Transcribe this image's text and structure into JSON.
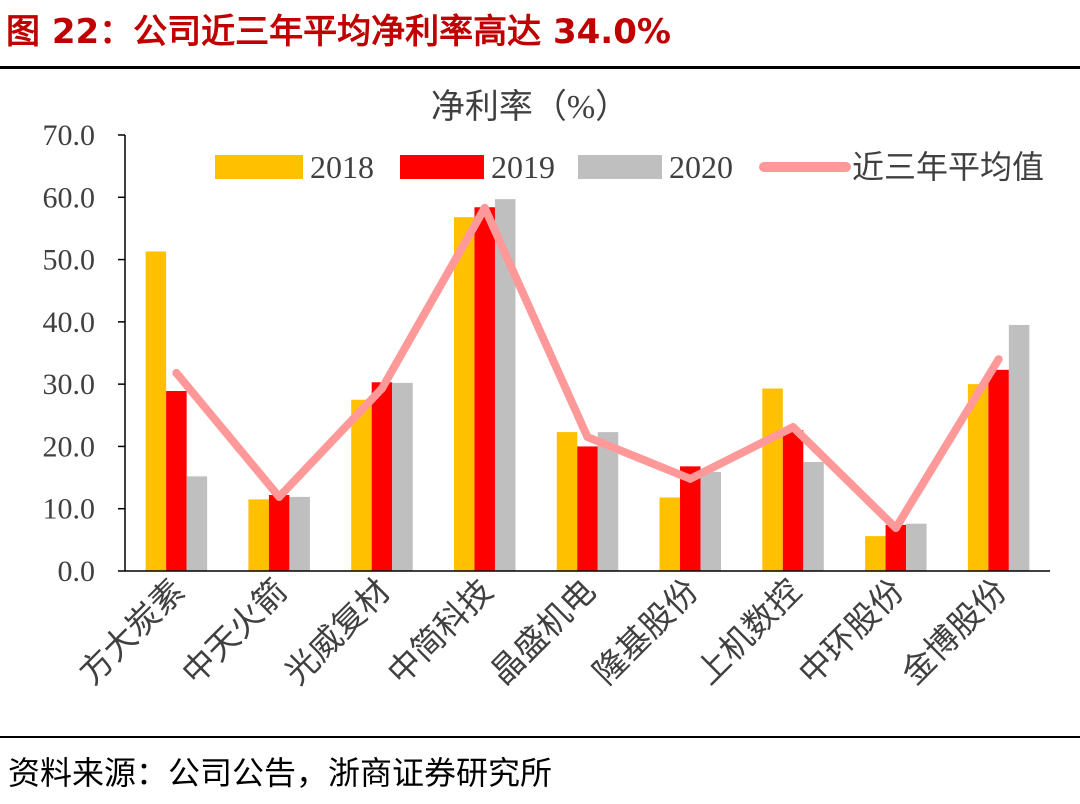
{
  "figure": {
    "title": "图 22：公司近三年平均净利率高达 34.0%",
    "source": "资料来源：公司公告，浙商证券研究所"
  },
  "chart_data": {
    "type": "bar",
    "title": "净利率（%）",
    "categories": [
      "方大炭素",
      "中天火箭",
      "光威复材",
      "中简科技",
      "晶盛机电",
      "隆基股份",
      "上机数控",
      "中环股份",
      "金博股份"
    ],
    "series": [
      {
        "name": "2018",
        "type": "bar",
        "color": "#FFC000",
        "values": [
          51.3,
          11.5,
          27.5,
          56.8,
          22.3,
          11.8,
          29.3,
          5.6,
          30.0
        ]
      },
      {
        "name": "2019",
        "type": "bar",
        "color": "#FF0000",
        "values": [
          28.9,
          12.2,
          30.3,
          58.4,
          20.0,
          16.8,
          22.6,
          7.4,
          32.3
        ]
      },
      {
        "name": "2020",
        "type": "bar",
        "color": "#BFBFBF",
        "values": [
          15.2,
          11.9,
          30.2,
          59.7,
          22.3,
          15.9,
          17.5,
          7.6,
          39.5
        ]
      },
      {
        "name": "近三年平均值",
        "type": "line",
        "color": "#FF9999",
        "values": [
          31.8,
          11.9,
          29.3,
          58.3,
          21.5,
          14.8,
          23.1,
          6.9,
          34.0
        ]
      }
    ],
    "yticks": [
      "0.0",
      "10.0",
      "20.0",
      "30.0",
      "40.0",
      "50.0",
      "60.0",
      "70.0"
    ],
    "ylim": [
      0,
      70
    ],
    "ystep": 10,
    "xlabel": "",
    "ylabel": "",
    "legend": "top",
    "grid": false
  }
}
